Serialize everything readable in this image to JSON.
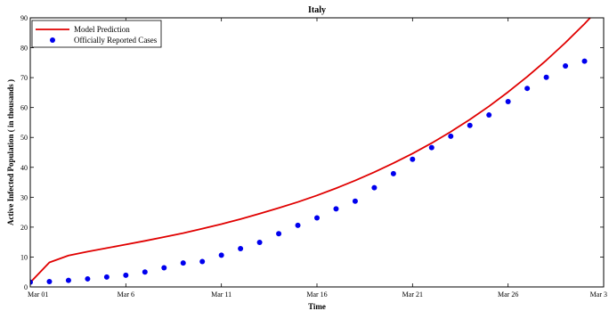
{
  "chart_data": {
    "type": "line",
    "title": "Italy",
    "xlabel": "Time",
    "ylabel": "Active Infected Population ( in thousands )",
    "xlim": [
      0,
      30
    ],
    "ylim": [
      0,
      90
    ],
    "x_ticks": [
      {
        "value": 0,
        "label": "Mar 01"
      },
      {
        "value": 5,
        "label": "Mar 6"
      },
      {
        "value": 10,
        "label": "Mar 11"
      },
      {
        "value": 15,
        "label": "Mar 16"
      },
      {
        "value": 20,
        "label": "Mar 21"
      },
      {
        "value": 25,
        "label": "Mar 26"
      },
      {
        "value": 30,
        "label": "Mar 3"
      }
    ],
    "y_ticks": [
      0,
      10,
      20,
      30,
      40,
      50,
      60,
      70,
      80,
      90
    ],
    "grid": false,
    "legend_position": "top-left",
    "series": [
      {
        "name": "Model Prediction",
        "style": "line",
        "color": "#e00000",
        "x": [
          0,
          1,
          2,
          3,
          4,
          5,
          6,
          7,
          8,
          9,
          10,
          11,
          12,
          13,
          14,
          15,
          16,
          17,
          18,
          19,
          20,
          21,
          22,
          23,
          24,
          25,
          26,
          27,
          28,
          29,
          30
        ],
        "values": [
          1.5,
          8.2,
          10.5,
          11.8,
          13.0,
          14.2,
          15.4,
          16.7,
          18.0,
          19.5,
          21.0,
          22.7,
          24.5,
          26.4,
          28.4,
          30.6,
          33.0,
          35.6,
          38.4,
          41.4,
          44.6,
          48.1,
          51.9,
          56.0,
          60.4,
          65.2,
          70.3,
          75.8,
          81.7,
          88.0,
          94.8
        ]
      },
      {
        "name": "Officially Reported Cases",
        "style": "markers",
        "color": "#0000ee",
        "x": [
          0,
          1,
          2,
          3,
          4,
          5,
          6,
          7,
          8,
          9,
          10,
          11,
          12,
          13,
          14,
          15,
          16,
          17,
          18,
          19,
          20,
          21,
          22,
          23,
          24,
          25,
          26,
          27,
          28,
          29
        ],
        "values": [
          1.6,
          1.8,
          2.2,
          2.7,
          3.3,
          3.9,
          5.0,
          6.4,
          8.0,
          8.5,
          10.6,
          12.8,
          14.9,
          17.8,
          20.6,
          23.1,
          26.1,
          28.7,
          33.2,
          37.9,
          42.7,
          46.6,
          50.4,
          54.0,
          57.5,
          62.0,
          66.4,
          70.1,
          73.9,
          75.5
        ]
      }
    ]
  }
}
